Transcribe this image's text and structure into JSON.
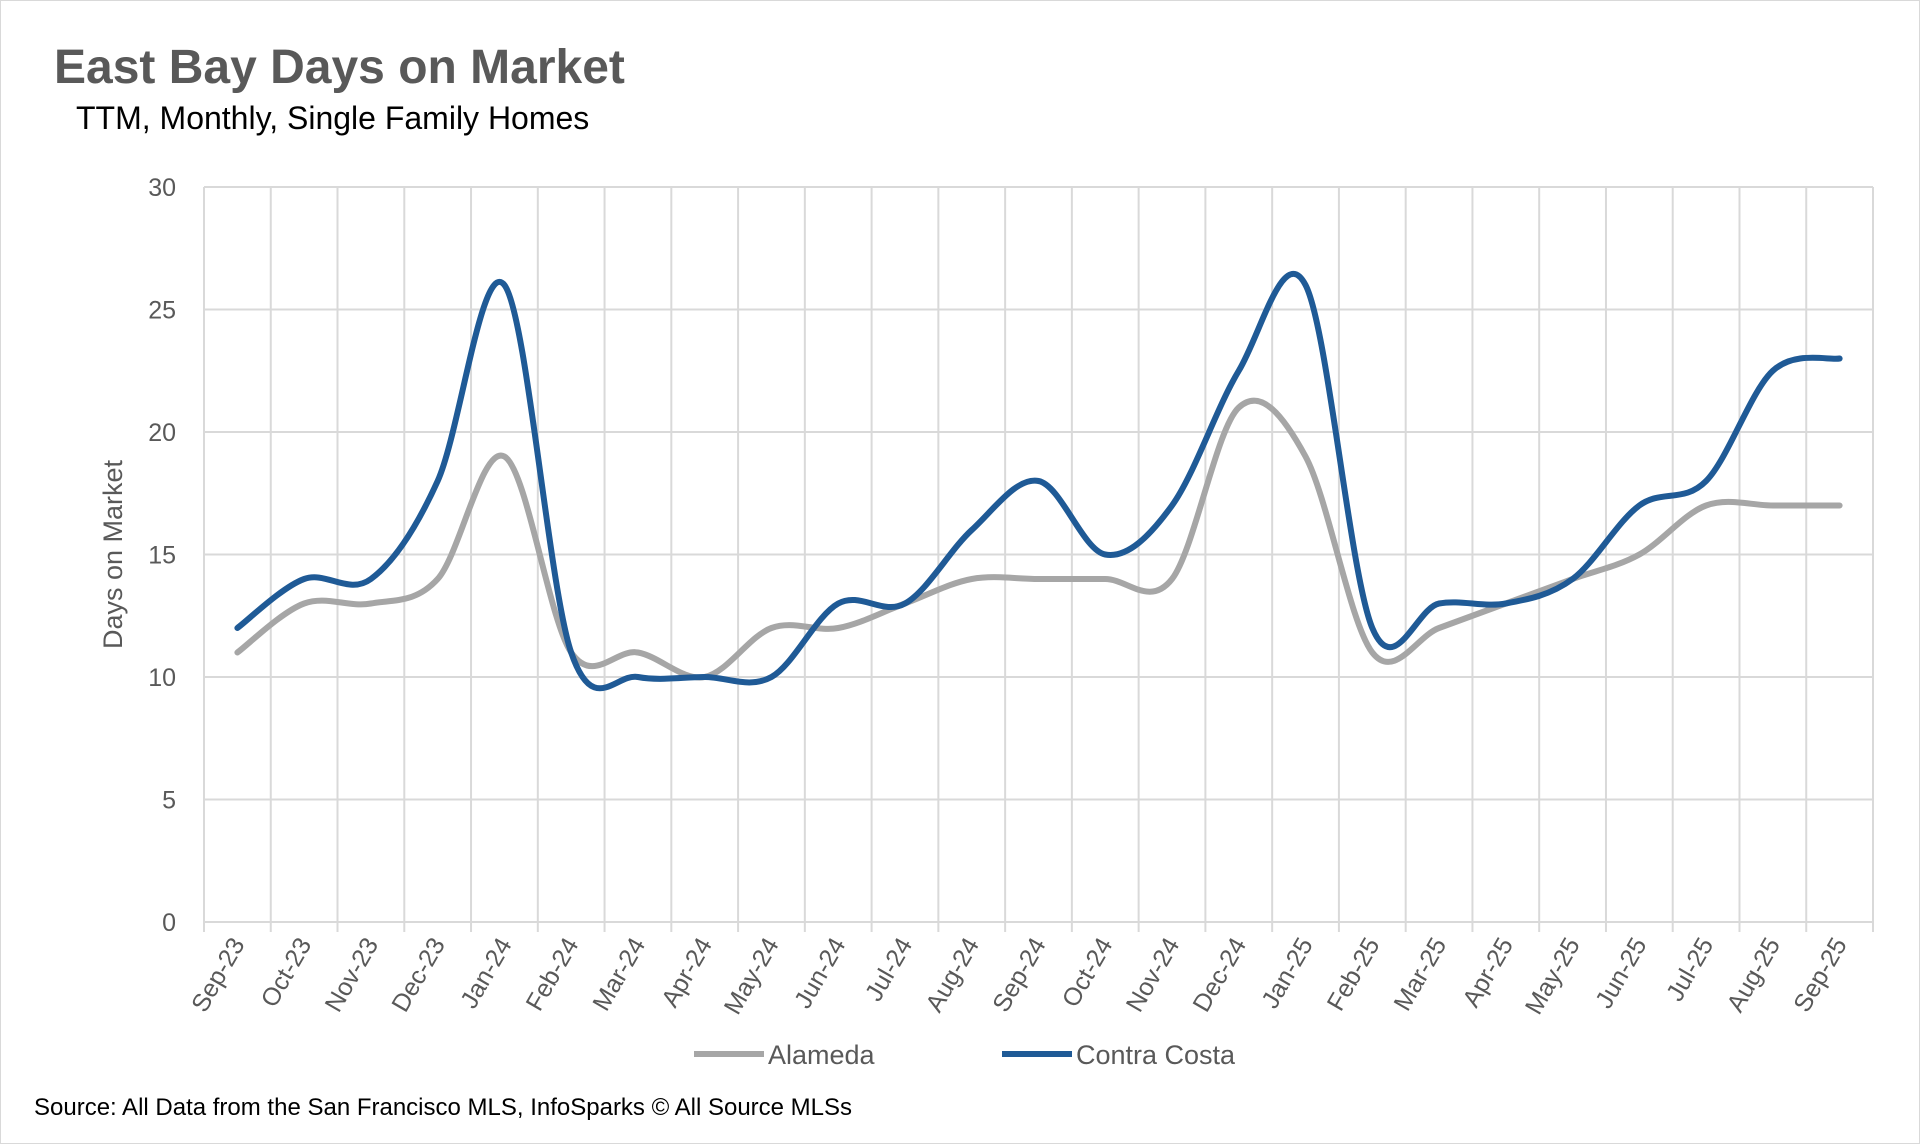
{
  "chart_data": {
    "type": "line",
    "title": "East Bay Days on Market",
    "subtitle": "TTM, Monthly, Single Family Homes",
    "xlabel": "",
    "ylabel": "Days on Market",
    "ylim": [
      0,
      30
    ],
    "yticks": [
      0,
      5,
      10,
      15,
      20,
      25,
      30
    ],
    "grid": true,
    "smooth": true,
    "legend_position": "bottom",
    "categories": [
      "Sep-23",
      "Oct-23",
      "Nov-23",
      "Dec-23",
      "Jan-24",
      "Feb-24",
      "Mar-24",
      "Apr-24",
      "May-24",
      "Jun-24",
      "Jul-24",
      "Aug-24",
      "Sep-24",
      "Oct-24",
      "Nov-24",
      "Dec-24",
      "Jan-25",
      "Feb-25",
      "Mar-25",
      "Apr-25",
      "May-25",
      "Jun-25",
      "Jul-25",
      "Aug-25",
      "Sep-25"
    ],
    "series": [
      {
        "name": "Alameda",
        "color": "#a6a6a6",
        "values": [
          11,
          13,
          13,
          14,
          19,
          11,
          11,
          10,
          12,
          12,
          13,
          14,
          14,
          14,
          14,
          21,
          19,
          11,
          12,
          13,
          14,
          15,
          17,
          17,
          17
        ]
      },
      {
        "name": "Contra Costa",
        "color": "#1f5a96",
        "values": [
          12,
          14,
          14,
          18,
          26,
          11,
          10,
          10,
          10,
          13,
          13,
          16,
          18,
          15,
          17,
          22.5,
          26,
          12,
          13,
          13,
          14,
          17,
          18,
          22.5,
          23
        ]
      }
    ],
    "source": "Source: All Data from the San Francisco MLS, InfoSparks © All Source MLSs"
  }
}
